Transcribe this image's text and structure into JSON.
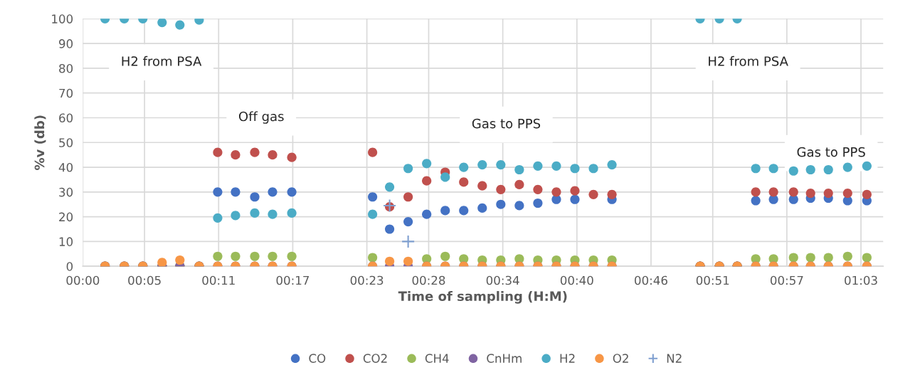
{
  "chart_data": {
    "type": "scatter",
    "xlabel": "Time of sampling (H:M)",
    "ylabel": "%v (db)",
    "x": [
      0.03,
      0.056,
      0.081,
      0.107,
      0.131,
      0.157,
      0.182,
      0.206,
      0.232,
      0.256,
      0.282,
      0.391,
      0.414,
      0.439,
      0.464,
      0.489,
      0.514,
      0.539,
      0.564,
      0.589,
      0.614,
      0.639,
      0.664,
      0.689,
      0.714,
      0.833,
      0.859,
      0.883,
      0.908,
      0.932,
      0.959,
      0.982,
      1.006,
      1.032,
      1.058
    ],
    "series": [
      {
        "name": "CO",
        "color": "#4472c4",
        "values": [
          0,
          0,
          0,
          0,
          0,
          0,
          30,
          30,
          28,
          30,
          30,
          28,
          15,
          18,
          21,
          22.5,
          22.5,
          23.5,
          25,
          24.5,
          25.5,
          27,
          27,
          null,
          27,
          0,
          0,
          0,
          26.5,
          27,
          27,
          27.5,
          27.5,
          26.5,
          26.5
        ]
      },
      {
        "name": "CO2",
        "color": "#c0504d",
        "values": [
          0,
          0,
          0,
          0,
          0,
          0,
          46,
          45,
          46,
          45,
          44,
          46,
          24,
          28,
          34.5,
          38,
          34,
          32.5,
          31,
          33,
          31,
          30,
          30.5,
          29,
          29,
          0,
          0,
          0,
          30,
          30,
          30,
          29.5,
          29.5,
          29.5,
          29
        ]
      },
      {
        "name": "CH4",
        "color": "#9bbb59",
        "values": [
          0,
          0,
          0,
          0,
          0,
          0,
          4,
          4,
          4,
          4,
          4,
          3.5,
          null,
          null,
          3,
          4,
          3,
          2.5,
          2.5,
          3,
          2.5,
          2.5,
          2.5,
          2.5,
          2.5,
          0,
          0,
          0,
          3,
          3,
          3.5,
          3.5,
          3.5,
          4,
          3.5
        ]
      },
      {
        "name": "CnHm",
        "color": "#8064a2",
        "values": [
          0,
          0,
          0,
          0,
          0,
          0,
          0,
          0,
          0,
          0,
          0,
          0,
          0,
          0,
          0,
          0,
          0,
          0,
          0,
          0,
          0,
          0,
          0,
          0,
          0,
          0,
          0,
          0,
          0,
          0,
          0,
          0,
          0,
          0,
          0
        ]
      },
      {
        "name": "H2",
        "color": "#4bacc6",
        "values": [
          100,
          100,
          100,
          98.5,
          97.5,
          99.5,
          19.5,
          20.5,
          21.5,
          21,
          21.5,
          21,
          32,
          39.5,
          41.5,
          36,
          40,
          41,
          41,
          39,
          40.5,
          40.5,
          39.5,
          39.5,
          41,
          100,
          100,
          100,
          39.5,
          39.5,
          38.5,
          39,
          39,
          40,
          40.5
        ]
      },
      {
        "name": "O2",
        "color": "#f79646",
        "values": [
          0,
          0,
          0,
          1.5,
          2.5,
          0,
          0,
          0,
          0,
          0,
          0,
          0,
          2,
          2,
          0,
          0,
          0,
          0,
          0,
          0,
          0,
          0,
          0,
          0,
          0,
          0,
          0,
          0,
          0,
          0,
          0,
          0,
          0,
          0,
          0
        ]
      },
      {
        "name": "N2",
        "color": "#7f9fd0",
        "marker": "cross",
        "values": [
          null,
          null,
          null,
          null,
          null,
          null,
          null,
          null,
          null,
          null,
          null,
          null,
          24.5,
          10,
          null,
          null,
          null,
          null,
          null,
          null,
          null,
          null,
          null,
          null,
          null,
          null,
          null,
          null,
          null,
          null,
          null,
          null,
          null,
          null,
          null
        ]
      }
    ],
    "marker": "circle",
    "xlim": [
      0,
      1.08
    ],
    "xticks": [
      {
        "value": 0,
        "label": "00:00"
      },
      {
        "value": 0.0833,
        "label": "00:05"
      },
      {
        "value": 0.1833,
        "label": "00:11"
      },
      {
        "value": 0.2833,
        "label": "00:17"
      },
      {
        "value": 0.3833,
        "label": "00:23"
      },
      {
        "value": 0.4667,
        "label": "00:28"
      },
      {
        "value": 0.5667,
        "label": "00:34"
      },
      {
        "value": 0.6667,
        "label": "00:40"
      },
      {
        "value": 0.7667,
        "label": "00:46"
      },
      {
        "value": 0.85,
        "label": "00:51"
      },
      {
        "value": 0.95,
        "label": "00:57"
      },
      {
        "value": 1.05,
        "label": "01:03"
      }
    ],
    "ylim": [
      0,
      100
    ],
    "yticks": [
      0,
      10,
      20,
      30,
      40,
      50,
      60,
      70,
      80,
      90,
      100
    ],
    "grid": true,
    "legend": "bottom",
    "annotations": [
      "H2 from PSA",
      "Off gas",
      "Gas to PPS",
      "H2 from PSA",
      "Gas to PPS"
    ]
  }
}
